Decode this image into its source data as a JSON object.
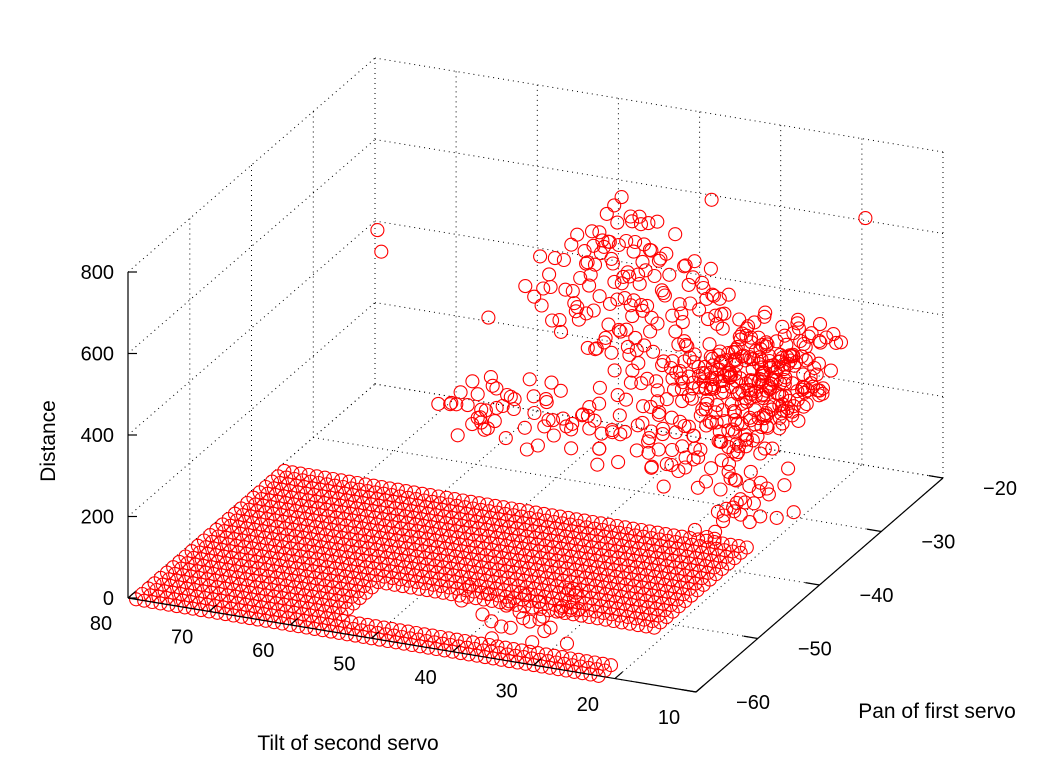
{
  "chart_data": {
    "type": "scatter3d",
    "xlabel": "Tilt of second servo",
    "ylabel": "Pan of first servo",
    "zlabel": "Distance",
    "xlim": [
      10,
      80
    ],
    "ylim": [
      -60,
      -20
    ],
    "zlim": [
      0,
      800
    ],
    "xticks": [
      {
        "value": 80,
        "label": "80"
      },
      {
        "value": 70,
        "label": "70"
      },
      {
        "value": 60,
        "label": "60"
      },
      {
        "value": 50,
        "label": "50"
      },
      {
        "value": 40,
        "label": "40"
      },
      {
        "value": 30,
        "label": "30"
      },
      {
        "value": 20,
        "label": "20"
      },
      {
        "value": 10,
        "label": "10"
      }
    ],
    "yticks": [
      {
        "value": -60,
        "label": "−60"
      },
      {
        "value": -50,
        "label": "−50"
      },
      {
        "value": -40,
        "label": "−40"
      },
      {
        "value": -30,
        "label": "−30"
      },
      {
        "value": -20,
        "label": "−20"
      }
    ],
    "zticks": [
      {
        "value": 0,
        "label": "0"
      },
      {
        "value": 200,
        "label": "200"
      },
      {
        "value": 400,
        "label": "400"
      },
      {
        "value": 600,
        "label": "600"
      },
      {
        "value": 800,
        "label": "800"
      }
    ],
    "grid": true,
    "marker": "circle-open",
    "color": "#ff0000",
    "floor_region": {
      "x_range": [
        22,
        79
      ],
      "y_range": [
        -60,
        -36
      ],
      "step": 1,
      "z": 0,
      "gaps": [
        {
          "x_range": [
            22,
            55
          ],
          "y_range": [
            -57,
            -52
          ]
        }
      ]
    },
    "clusters": [
      {
        "x_range": [
          30,
          44
        ],
        "y_range": [
          -54,
          -51
        ],
        "z": 10
      },
      {
        "x_range": [
          21,
          29
        ],
        "y_range": [
          -36,
          -29
        ],
        "z": 60
      },
      {
        "x_range": [
          24,
          50
        ],
        "y_range": [
          -50,
          -44
        ],
        "z": 420
      },
      {
        "x_range": [
          18,
          32
        ],
        "y_range": [
          -34,
          -26
        ],
        "z": 330
      },
      {
        "x_range": [
          23,
          33
        ],
        "y_range": [
          -40,
          -34
        ],
        "z": 230
      },
      {
        "x_range": [
          12,
          24
        ],
        "y_range": [
          -46,
          -34
        ],
        "z": 520
      },
      {
        "x_range": [
          12,
          20
        ],
        "y_range": [
          -46,
          -36
        ],
        "z": 420
      }
    ],
    "ridge": {
      "x_range": [
        24,
        50
      ],
      "y_range": [
        -36,
        -20
      ],
      "z_range": [
        200,
        560
      ]
    },
    "outliers": [
      {
        "x": 64,
        "y": -40,
        "z": 640
      },
      {
        "x": 66,
        "y": -38,
        "z": 660
      },
      {
        "x": 37,
        "y": -22,
        "z": 620
      },
      {
        "x": 33,
        "y": -35,
        "z": 100
      },
      {
        "x": 47,
        "y": -45,
        "z": 600
      },
      {
        "x": 15,
        "y": -26,
        "z": 700
      }
    ]
  }
}
